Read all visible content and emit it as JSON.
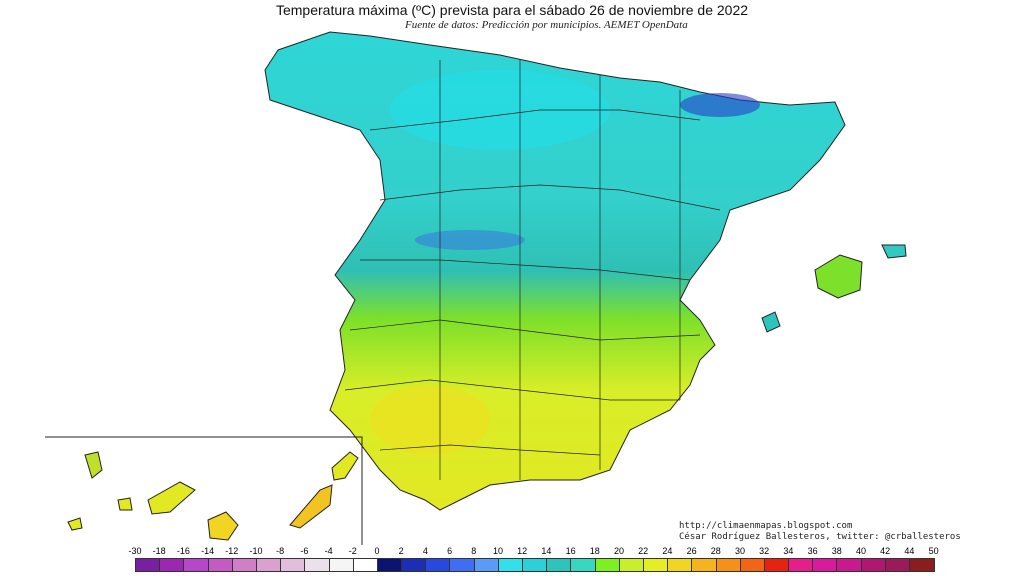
{
  "header": {
    "title": "Temperatura máxima (ºC) prevista para el sábado 26 de noviembre de 2022",
    "subtitle": "Fuente de datos: Predicción por municipios. AEMET OpenData"
  },
  "credits": {
    "url": "http://climaenmapas.blogspot.com",
    "author": "César Rodríguez Ballesteros, twitter: @crballesteros"
  },
  "legend": {
    "ticks": [
      "-30",
      "-18",
      "-16",
      "-14",
      "-12",
      "-10",
      "-8",
      "-6",
      "-4",
      "-2",
      "0",
      "2",
      "4",
      "6",
      "8",
      "10",
      "12",
      "14",
      "16",
      "18",
      "20",
      "22",
      "24",
      "26",
      "28",
      "30",
      "32",
      "34",
      "36",
      "38",
      "40",
      "42",
      "44",
      "50"
    ],
    "colors": [
      "#7a1fa2",
      "#9c27b0",
      "#b548c6",
      "#c45bc4",
      "#d07ec8",
      "#d9a0d0",
      "#e2bedd",
      "#ece0ec",
      "#f5f5f5",
      "#ffffff",
      "#0b1470",
      "#1b2fb5",
      "#2849e0",
      "#3f6ef2",
      "#5b9af5",
      "#33e0ea",
      "#2bd0d8",
      "#2ec4bc",
      "#38d8c0",
      "#7df020",
      "#c7f02a",
      "#e5ee22",
      "#f2d422",
      "#f5b41e",
      "#f5901a",
      "#f26514",
      "#e62210",
      "#e51e8c",
      "#d81a9c",
      "#c81a8c",
      "#b01870",
      "#9a1a5a",
      "#8a1e1e"
    ]
  },
  "map": {
    "regions": [
      "peninsula",
      "balearic-islands",
      "canary-islands"
    ]
  }
}
